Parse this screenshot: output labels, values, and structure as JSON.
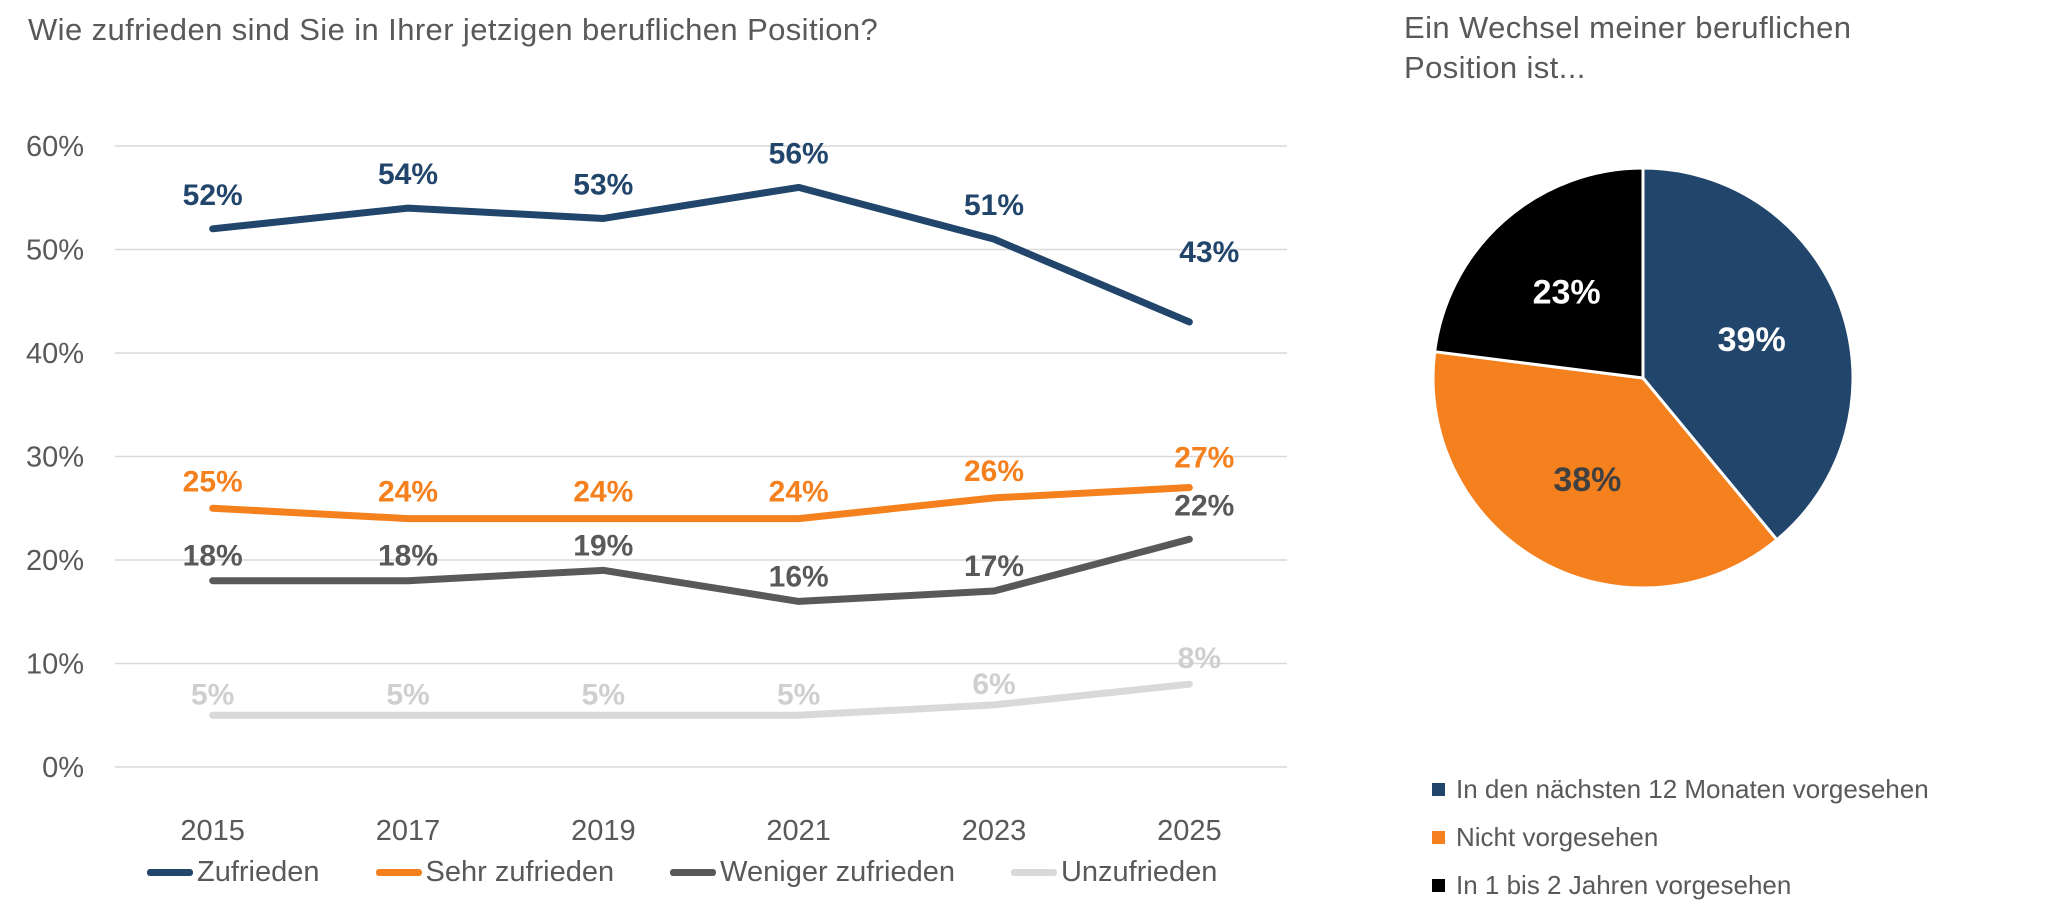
{
  "chart_data": [
    {
      "type": "line",
      "title": "Wie zufrieden sind Sie in Ihrer jetzigen beruflichen Position?",
      "categories": [
        "2015",
        "2017",
        "2019",
        "2021",
        "2023",
        "2025"
      ],
      "series": [
        {
          "name": "Zufrieden",
          "color": "#21456B",
          "label_color": "#21456B",
          "values": [
            52,
            54,
            53,
            56,
            51,
            43
          ]
        },
        {
          "name": "Sehr zufrieden",
          "color": "#F5801E",
          "label_color": "#F5801E",
          "values": [
            25,
            24,
            24,
            24,
            26,
            27
          ]
        },
        {
          "name": "Weniger zufrieden",
          "color": "#595959",
          "label_color": "#595959",
          "values": [
            18,
            18,
            19,
            16,
            17,
            22
          ]
        },
        {
          "name": "Unzufrieden",
          "color": "#D9D9D9",
          "label_color": "#CFCFCF",
          "values": [
            5,
            5,
            5,
            5,
            6,
            8
          ]
        }
      ],
      "xlabel": "",
      "ylabel": "",
      "ylim": [
        0,
        60
      ],
      "y_tick_step": 10,
      "y_tick_suffix": "%",
      "y_tick_labels": [
        "0%",
        "10%",
        "20%",
        "30%",
        "40%",
        "50%",
        "60%"
      ],
      "data_label_suffix": "%",
      "grid": true,
      "gridline_color": "#D9D9D9",
      "axis_text_color": "#595959",
      "legend_position": "bottom"
    },
    {
      "type": "pie",
      "title": "Ein Wechsel meiner beruflichen Position ist...",
      "slices": [
        {
          "label": "In den nächsten 12 Monaten vorgesehen",
          "value": 39,
          "pct_label": "39%",
          "color": "#21456B",
          "label_color": "#FFFFFF"
        },
        {
          "label": "Nicht vorgesehen",
          "value": 38,
          "pct_label": "38%",
          "color": "#F5801E",
          "label_color": "#404040"
        },
        {
          "label": "In 1 bis 2 Jahren vorgesehen",
          "value": 23,
          "pct_label": "23%",
          "color": "#000000",
          "label_color": "#FFFFFF"
        }
      ],
      "start_angle_deg": -90,
      "direction": "clockwise",
      "slice_border_color": "#FFFFFF",
      "legend_position": "bottom-left"
    }
  ]
}
